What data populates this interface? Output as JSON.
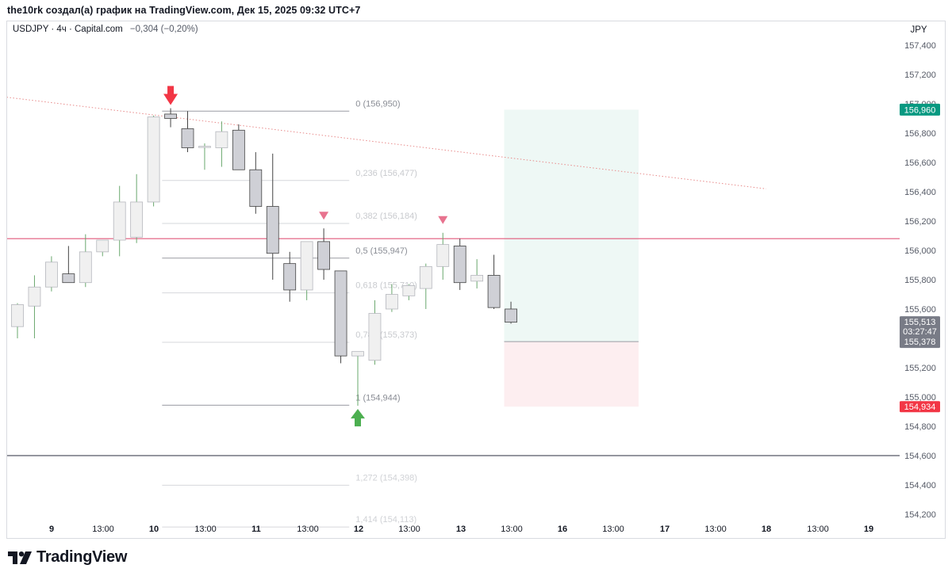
{
  "header": {
    "title": "the10rk создал(а) график на TradingView.com, Дек 15, 2025 09:32 UTC+7"
  },
  "symbol": {
    "name": "USDJPY · 4ч · Capital.com",
    "change": "−0,304 (−0,20%)"
  },
  "currency_label": "JPY",
  "brand": {
    "name": "TradingView"
  },
  "colors": {
    "candle_up_body": "#f0f0f0",
    "candle_down_body": "#cfd0d6",
    "wick_up": "#6aa86e",
    "wick_down": "#444444",
    "resistance_line": "#e0587a",
    "trend_line": "#e88b8b",
    "fib_line": "#b8b8b8",
    "target_zone": "#eef8f5",
    "stop_zone": "#fdeef0",
    "tag_green": "#089981",
    "tag_red": "#f23645",
    "tag_grey": "#787b86",
    "arrow_red": "#f23645",
    "arrow_green": "#4caf50",
    "marker_pink": "#e8738f"
  },
  "chart_data": {
    "type": "candlestick",
    "y_axis": {
      "min": 154.2,
      "max": 157.4,
      "ticks": [
        "157,400",
        "157,200",
        "157,000",
        "156,800",
        "156,600",
        "156,400",
        "156,200",
        "156,000",
        "155,800",
        "155,600",
        "155,400",
        "155,200",
        "155,000",
        "154,800",
        "154,600",
        "154,400",
        "154,200"
      ]
    },
    "x_axis": {
      "ticks": [
        "9",
        "13:00",
        "10",
        "13:00",
        "11",
        "13:00",
        "12",
        "13:00",
        "13",
        "13:00",
        "16",
        "13:00",
        "17",
        "13:00",
        "18",
        "13:00",
        "19"
      ]
    },
    "candles": [
      {
        "o": 155.48,
        "h": 155.64,
        "l": 155.4,
        "c": 155.63
      },
      {
        "o": 155.62,
        "h": 155.83,
        "l": 155.4,
        "c": 155.75
      },
      {
        "o": 155.75,
        "h": 155.96,
        "l": 155.72,
        "c": 155.92
      },
      {
        "o": 155.84,
        "h": 156.03,
        "l": 155.81,
        "c": 155.78
      },
      {
        "o": 155.78,
        "h": 156.11,
        "l": 155.75,
        "c": 155.99
      },
      {
        "o": 155.99,
        "h": 156.07,
        "l": 155.96,
        "c": 156.07
      },
      {
        "o": 156.07,
        "h": 156.44,
        "l": 155.96,
        "c": 156.33
      },
      {
        "o": 156.09,
        "h": 156.52,
        "l": 156.05,
        "c": 156.33
      },
      {
        "o": 156.33,
        "h": 156.92,
        "l": 156.3,
        "c": 156.91
      },
      {
        "o": 156.93,
        "h": 156.97,
        "l": 156.84,
        "c": 156.9
      },
      {
        "o": 156.83,
        "h": 156.95,
        "l": 156.67,
        "c": 156.7
      },
      {
        "o": 156.71,
        "h": 156.73,
        "l": 156.55,
        "c": 156.71
      },
      {
        "o": 156.7,
        "h": 156.88,
        "l": 156.57,
        "c": 156.81
      },
      {
        "o": 156.82,
        "h": 156.86,
        "l": 156.55,
        "c": 156.55
      },
      {
        "o": 156.55,
        "h": 156.67,
        "l": 156.25,
        "c": 156.3
      },
      {
        "o": 156.3,
        "h": 156.66,
        "l": 155.8,
        "c": 155.98
      },
      {
        "o": 155.91,
        "h": 155.99,
        "l": 155.65,
        "c": 155.73
      },
      {
        "o": 155.73,
        "h": 156.06,
        "l": 155.66,
        "c": 156.06
      },
      {
        "o": 156.06,
        "h": 156.15,
        "l": 155.8,
        "c": 155.87
      },
      {
        "o": 155.86,
        "h": 155.86,
        "l": 155.23,
        "c": 155.28
      },
      {
        "o": 155.28,
        "h": 155.31,
        "l": 154.94,
        "c": 155.31
      },
      {
        "o": 155.25,
        "h": 155.66,
        "l": 155.22,
        "c": 155.57
      },
      {
        "o": 155.6,
        "h": 155.77,
        "l": 155.58,
        "c": 155.7
      },
      {
        "o": 155.69,
        "h": 155.77,
        "l": 155.66,
        "c": 155.76
      },
      {
        "o": 155.74,
        "h": 155.91,
        "l": 155.6,
        "c": 155.89
      },
      {
        "o": 155.89,
        "h": 156.12,
        "l": 155.8,
        "c": 156.04
      },
      {
        "o": 156.03,
        "h": 156.08,
        "l": 155.73,
        "c": 155.78
      },
      {
        "o": 155.79,
        "h": 155.94,
        "l": 155.74,
        "c": 155.83
      },
      {
        "o": 155.83,
        "h": 155.97,
        "l": 155.6,
        "c": 155.61
      },
      {
        "o": 155.6,
        "h": 155.65,
        "l": 155.5,
        "c": 155.51
      }
    ],
    "fib_levels": [
      {
        "ratio": "0",
        "price": 156.95,
        "label": "0 (156,950)"
      },
      {
        "ratio": "0.236",
        "price": 156.477,
        "label": "0,236 (156,477)"
      },
      {
        "ratio": "0.382",
        "price": 156.184,
        "label": "0,382 (156,184)"
      },
      {
        "ratio": "0.5",
        "price": 155.947,
        "label": "0,5 (155,947)"
      },
      {
        "ratio": "0.618",
        "price": 155.71,
        "label": "0,618 (155,710)"
      },
      {
        "ratio": "0.786",
        "price": 155.373,
        "label": "0,786 (155,373)"
      },
      {
        "ratio": "1",
        "price": 154.944,
        "label": "1 (154,944)"
      },
      {
        "ratio": "1.272",
        "price": 154.398,
        "label": "1,272 (154,398)"
      },
      {
        "ratio": "1.414",
        "price": 154.113,
        "label": "1,414 (154,113)"
      }
    ],
    "horizontal_lines": [
      {
        "price": 156.08,
        "kind": "resistance"
      },
      {
        "price": 154.6,
        "kind": "support"
      }
    ],
    "trend_line": {
      "from_candle": -1,
      "from_price": 157.05,
      "to_candle": 44,
      "to_price": 156.42
    },
    "position": {
      "entry": 155.378,
      "target": 156.96,
      "stop": 154.934,
      "from_candle": 28.6,
      "to_candle": 36.5
    },
    "price_tags": [
      {
        "label": "156,960",
        "kind": "target"
      },
      {
        "label": "155,513",
        "kind": "current"
      },
      {
        "label": "03:27:47",
        "kind": "countdown"
      },
      {
        "label": "155,378",
        "kind": "entry"
      },
      {
        "label": "154,934",
        "kind": "stop"
      }
    ],
    "markers": [
      {
        "candle": 9,
        "kind": "arrow-down-red"
      },
      {
        "candle": 20,
        "kind": "arrow-up-green"
      },
      {
        "candle": 18,
        "kind": "triangle-down-pink"
      },
      {
        "candle": 25,
        "kind": "triangle-down-pink"
      }
    ]
  }
}
